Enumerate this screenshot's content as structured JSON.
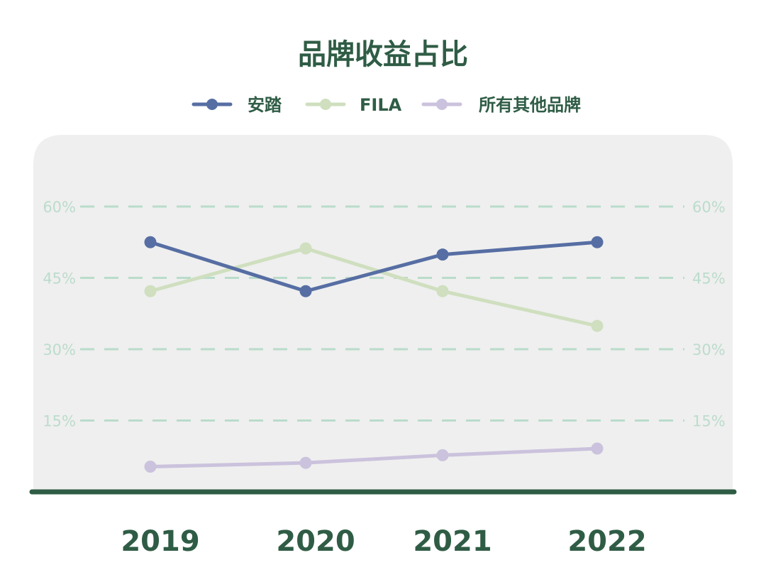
{
  "colors": {
    "title": "#2f5c45",
    "panel": "#efefef",
    "grid": "#b9dccb",
    "tick": "#bcdccc",
    "baseline": "#2f5c45",
    "xtick": "#2f5c45"
  },
  "chart_data": {
    "type": "line",
    "title": "品牌收益占比",
    "categories": [
      "2019",
      "2020",
      "2021",
      "2022"
    ],
    "ylim": [
      0,
      60
    ],
    "yticks": [
      15,
      30,
      45,
      60
    ],
    "ytick_labels": [
      "15%",
      "30%",
      "45%",
      "60%"
    ],
    "grid": true,
    "legend_position": "top",
    "series": [
      {
        "name": "安踏",
        "color": "#566ea3",
        "values": [
          52.5,
          42.2,
          49.9,
          52.5
        ]
      },
      {
        "name": "FILA",
        "color": "#cfdfbf",
        "values": [
          42.2,
          51.2,
          42.2,
          34.9
        ]
      },
      {
        "name": "所有其他品牌",
        "color": "#cbc2dd",
        "values": [
          5.3,
          6.1,
          7.7,
          9.1
        ]
      }
    ]
  }
}
